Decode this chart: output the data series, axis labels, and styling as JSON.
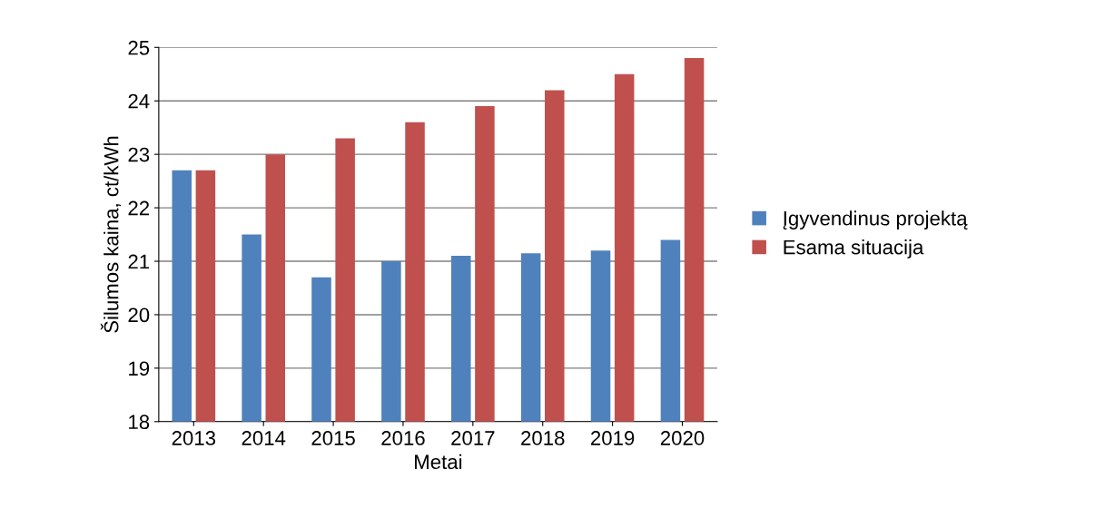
{
  "chart_data": {
    "type": "bar",
    "xlabel": "Metai",
    "ylabel": "Šilumos kaina, ct/kWh",
    "categories": [
      "2013",
      "2014",
      "2015",
      "2016",
      "2017",
      "2018",
      "2019",
      "2020"
    ],
    "series": [
      {
        "name": "Įgyvendinus projektą",
        "color": "#4f81bd",
        "values": [
          22.7,
          21.5,
          20.7,
          21.0,
          21.1,
          21.15,
          21.2,
          21.4
        ]
      },
      {
        "name": "Esama situacija",
        "color": "#c0504d",
        "values": [
          22.7,
          23.0,
          23.3,
          23.6,
          23.9,
          24.2,
          24.5,
          24.8
        ]
      }
    ],
    "ylim": [
      18,
      25
    ],
    "yticks": [
      18,
      19,
      20,
      21,
      22,
      23,
      24,
      25
    ],
    "grid": "y",
    "legend": "right"
  }
}
